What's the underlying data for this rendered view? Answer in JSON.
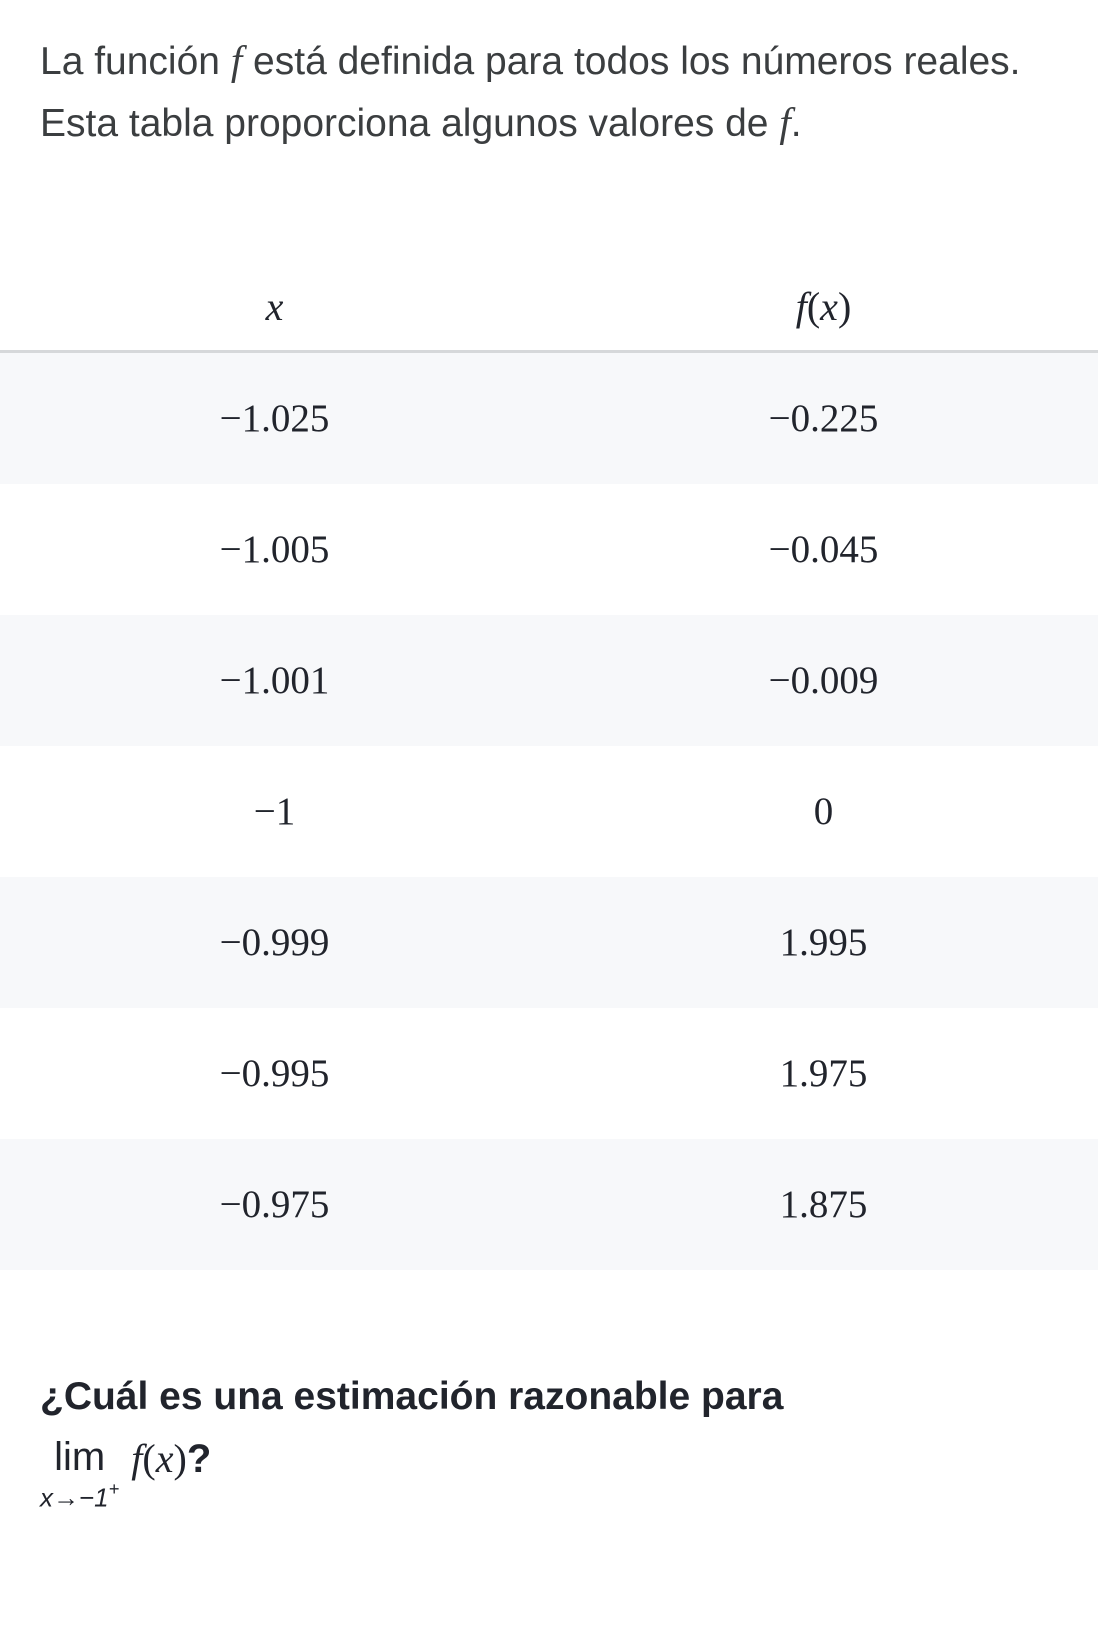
{
  "intro": {
    "part1": "La función ",
    "var1": "f",
    "part2": " está definida para todos los números reales. Esta tabla proporciona algunos valores de ",
    "var2": "f",
    "part3": "."
  },
  "table": {
    "headers": {
      "col1": "x",
      "col2_f": "f",
      "col2_paren_open": "(",
      "col2_x": "x",
      "col2_paren_close": ")"
    },
    "rows": [
      {
        "x": "−1.025",
        "fx": "−0.225"
      },
      {
        "x": "−1.005",
        "fx": "−0.045"
      },
      {
        "x": "−1.001",
        "fx": "−0.009"
      },
      {
        "x": "−1",
        "fx": "0"
      },
      {
        "x": "−0.999",
        "fx": "1.995"
      },
      {
        "x": "−0.995",
        "fx": "1.975"
      },
      {
        "x": "−0.975",
        "fx": "1.875"
      }
    ]
  },
  "question": {
    "line1": "¿Cuál es una estimación razonable para",
    "lim_word": "lim",
    "lim_sub_prefix": "x→−1",
    "lim_sub_sup": "+",
    "fx_f": "f",
    "fx_open": "(",
    "fx_x": "x",
    "fx_close": ")",
    "qmark": "?"
  },
  "colors": {
    "text": "#21242c",
    "intro_text": "#3b3e40",
    "row_odd_bg": "#f7f8fa",
    "row_even_bg": "#ffffff",
    "border": "#d6d8da"
  }
}
